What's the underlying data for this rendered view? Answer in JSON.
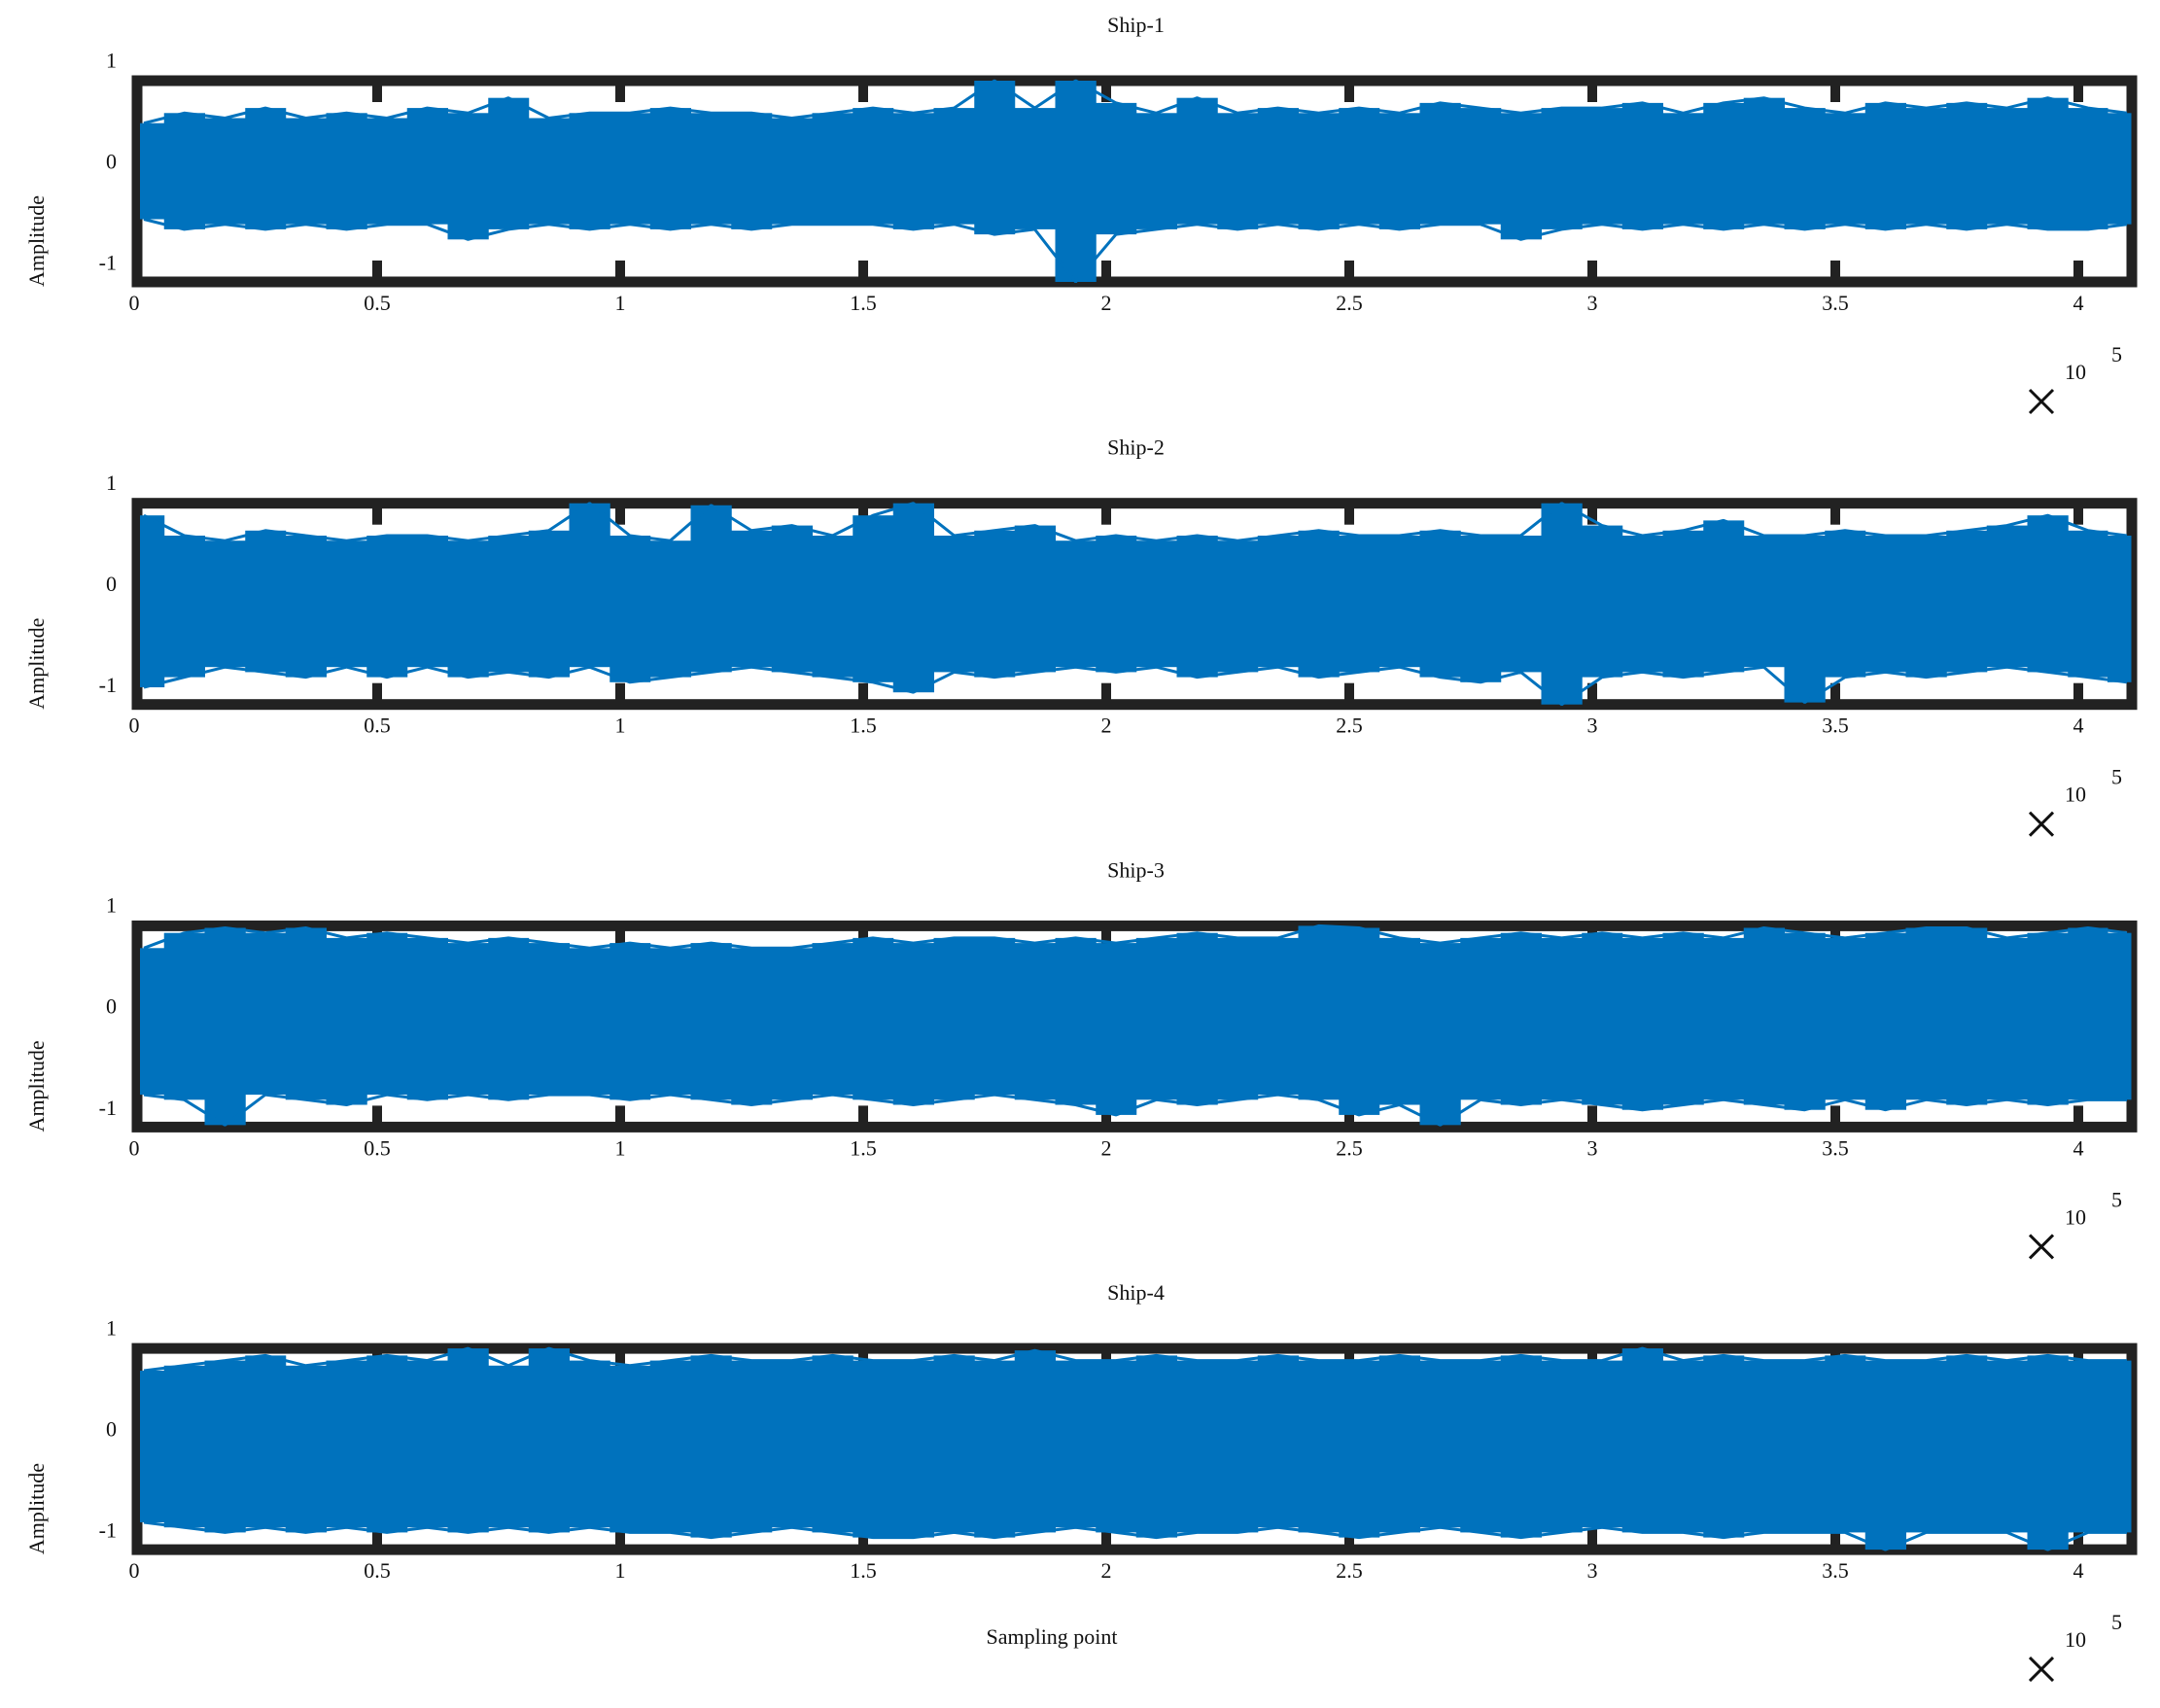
{
  "chart_data": [
    {
      "type": "line",
      "title": "Ship-1",
      "ylabel": "Amplitude",
      "x": [
        0.02,
        0.103,
        0.187,
        0.27,
        0.353,
        0.437,
        0.52,
        0.603,
        0.687,
        0.77,
        0.853,
        0.937,
        1.02,
        1.103,
        1.187,
        1.27,
        1.353,
        1.437,
        1.52,
        1.603,
        1.687,
        1.77,
        1.853,
        1.937,
        2.02,
        2.103,
        2.187,
        2.27,
        2.353,
        2.437,
        2.52,
        2.603,
        2.687,
        2.77,
        2.853,
        2.937,
        3.02,
        3.103,
        3.187,
        3.27,
        3.353,
        3.437,
        3.52,
        3.603,
        3.687,
        3.77,
        3.853,
        3.937,
        4.02,
        4.1
      ],
      "series": [
        {
          "color": "#0072bd",
          "values": [
            0.4,
            0.5,
            0.45,
            0.55,
            0.45,
            0.5,
            0.45,
            0.55,
            0.5,
            0.65,
            0.45,
            0.5,
            0.5,
            0.55,
            0.5,
            0.5,
            0.45,
            0.5,
            0.55,
            0.5,
            0.55,
            0.82,
            0.55,
            0.82,
            0.6,
            0.5,
            0.65,
            0.5,
            0.55,
            0.5,
            0.55,
            0.5,
            0.6,
            0.55,
            0.5,
            0.55,
            0.55,
            0.6,
            0.5,
            0.6,
            0.65,
            0.55,
            0.5,
            0.6,
            0.55,
            0.6,
            0.55,
            0.65,
            0.55,
            0.5
          ]
        },
        {
          "color": "#0072bd",
          "values": [
            -0.55,
            -0.65,
            -0.6,
            -0.65,
            -0.6,
            -0.65,
            -0.6,
            -0.6,
            -0.75,
            -0.65,
            -0.6,
            -0.65,
            -0.6,
            -0.65,
            -0.6,
            -0.65,
            -0.6,
            -0.6,
            -0.6,
            -0.65,
            -0.6,
            -0.7,
            -0.65,
            -1.17,
            -0.7,
            -0.65,
            -0.6,
            -0.65,
            -0.6,
            -0.65,
            -0.6,
            -0.65,
            -0.6,
            -0.6,
            -0.75,
            -0.65,
            -0.6,
            -0.65,
            -0.6,
            -0.65,
            -0.6,
            -0.65,
            -0.6,
            -0.65,
            -0.6,
            -0.65,
            -0.6,
            -0.65,
            -0.65,
            -0.6
          ]
        }
      ],
      "xlim": [
        0,
        4.11
      ],
      "ylim": [
        -1.17,
        0.82
      ],
      "xticks": [
        0,
        0.5,
        1,
        1.5,
        2,
        2.5,
        3,
        3.5,
        4
      ],
      "yticks": [
        -1,
        0,
        1
      ],
      "x_multiplier": {
        "base": "10",
        "exponent": "5"
      }
    },
    {
      "type": "line",
      "title": "Ship-2",
      "ylabel": "Amplitude",
      "x": [
        0.02,
        0.103,
        0.187,
        0.27,
        0.353,
        0.437,
        0.52,
        0.603,
        0.687,
        0.77,
        0.853,
        0.937,
        1.02,
        1.103,
        1.187,
        1.27,
        1.353,
        1.437,
        1.52,
        1.603,
        1.687,
        1.77,
        1.853,
        1.937,
        2.02,
        2.103,
        2.187,
        2.27,
        2.353,
        2.437,
        2.52,
        2.603,
        2.687,
        2.77,
        2.853,
        2.937,
        3.02,
        3.103,
        3.187,
        3.27,
        3.353,
        3.437,
        3.52,
        3.603,
        3.687,
        3.77,
        3.853,
        3.937,
        4.02,
        4.1
      ],
      "series": [
        {
          "color": "#0072bd",
          "values": [
            0.7,
            0.5,
            0.45,
            0.55,
            0.5,
            0.45,
            0.5,
            0.5,
            0.45,
            0.5,
            0.55,
            0.82,
            0.5,
            0.45,
            0.8,
            0.55,
            0.6,
            0.5,
            0.7,
            0.82,
            0.5,
            0.55,
            0.6,
            0.45,
            0.5,
            0.45,
            0.5,
            0.45,
            0.5,
            0.55,
            0.5,
            0.5,
            0.55,
            0.5,
            0.5,
            0.82,
            0.6,
            0.5,
            0.55,
            0.65,
            0.5,
            0.5,
            0.55,
            0.5,
            0.5,
            0.55,
            0.6,
            0.7,
            0.55,
            0.5
          ]
        },
        {
          "color": "#0072bd",
          "values": [
            -1.0,
            -0.9,
            -0.8,
            -0.85,
            -0.9,
            -0.8,
            -0.9,
            -0.8,
            -0.9,
            -0.85,
            -0.9,
            -0.8,
            -0.95,
            -0.9,
            -0.85,
            -0.8,
            -0.85,
            -0.9,
            -0.95,
            -1.05,
            -0.85,
            -0.9,
            -0.85,
            -0.8,
            -0.85,
            -0.8,
            -0.9,
            -0.85,
            -0.8,
            -0.9,
            -0.85,
            -0.8,
            -0.9,
            -0.95,
            -0.85,
            -1.17,
            -0.9,
            -0.85,
            -0.9,
            -0.85,
            -0.8,
            -1.15,
            -0.9,
            -0.85,
            -0.9,
            -0.85,
            -0.8,
            -0.85,
            -0.9,
            -0.95
          ]
        }
      ],
      "xlim": [
        0,
        4.11
      ],
      "ylim": [
        -1.17,
        0.82
      ],
      "xticks": [
        0,
        0.5,
        1,
        1.5,
        2,
        2.5,
        3,
        3.5,
        4
      ],
      "yticks": [
        -1,
        0,
        1
      ],
      "x_multiplier": {
        "base": "10",
        "exponent": "5"
      }
    },
    {
      "type": "line",
      "title": "Ship-3",
      "ylabel": "Amplitude",
      "x": [
        0.02,
        0.103,
        0.187,
        0.27,
        0.353,
        0.437,
        0.52,
        0.603,
        0.687,
        0.77,
        0.853,
        0.937,
        1.02,
        1.103,
        1.187,
        1.27,
        1.353,
        1.437,
        1.52,
        1.603,
        1.687,
        1.77,
        1.853,
        1.937,
        2.02,
        2.103,
        2.187,
        2.27,
        2.353,
        2.437,
        2.52,
        2.603,
        2.687,
        2.77,
        2.853,
        2.937,
        3.02,
        3.103,
        3.187,
        3.27,
        3.353,
        3.437,
        3.52,
        3.603,
        3.687,
        3.77,
        3.853,
        3.937,
        4.02,
        4.1
      ],
      "series": [
        {
          "color": "#0072bd",
          "values": [
            0.6,
            0.75,
            0.8,
            0.75,
            0.8,
            0.7,
            0.75,
            0.7,
            0.65,
            0.7,
            0.65,
            0.6,
            0.65,
            0.6,
            0.65,
            0.6,
            0.6,
            0.65,
            0.7,
            0.65,
            0.7,
            0.7,
            0.65,
            0.7,
            0.65,
            0.7,
            0.75,
            0.7,
            0.7,
            0.82,
            0.8,
            0.7,
            0.65,
            0.7,
            0.75,
            0.7,
            0.75,
            0.7,
            0.75,
            0.7,
            0.8,
            0.75,
            0.7,
            0.75,
            0.8,
            0.8,
            0.7,
            0.75,
            0.8,
            0.75
          ]
        },
        {
          "color": "#0072bd",
          "values": [
            -0.85,
            -0.9,
            -1.15,
            -0.85,
            -0.9,
            -0.95,
            -0.85,
            -0.9,
            -0.85,
            -0.9,
            -0.85,
            -0.85,
            -0.9,
            -0.85,
            -0.9,
            -0.95,
            -0.9,
            -0.85,
            -0.9,
            -0.95,
            -0.9,
            -0.85,
            -0.9,
            -0.95,
            -1.05,
            -0.9,
            -0.95,
            -0.9,
            -0.85,
            -0.9,
            -1.05,
            -0.95,
            -1.15,
            -0.9,
            -0.95,
            -0.9,
            -0.95,
            -1.0,
            -0.95,
            -0.9,
            -0.95,
            -1.0,
            -0.9,
            -1.0,
            -0.9,
            -0.95,
            -0.9,
            -0.95,
            -0.9,
            -0.9
          ]
        }
      ],
      "xlim": [
        0,
        4.11
      ],
      "ylim": [
        -1.17,
        0.82
      ],
      "xticks": [
        0,
        0.5,
        1,
        1.5,
        2,
        2.5,
        3,
        3.5,
        4
      ],
      "yticks": [
        -1,
        0,
        1
      ],
      "x_multiplier": {
        "base": "10",
        "exponent": "5"
      }
    },
    {
      "type": "line",
      "title": "Ship-4",
      "ylabel": "Amplitude",
      "xlabel": "Sampling point",
      "x": [
        0.02,
        0.103,
        0.187,
        0.27,
        0.353,
        0.437,
        0.52,
        0.603,
        0.687,
        0.77,
        0.853,
        0.937,
        1.02,
        1.103,
        1.187,
        1.27,
        1.353,
        1.437,
        1.52,
        1.603,
        1.687,
        1.77,
        1.853,
        1.937,
        2.02,
        2.103,
        2.187,
        2.27,
        2.353,
        2.437,
        2.52,
        2.603,
        2.687,
        2.77,
        2.853,
        2.937,
        3.02,
        3.103,
        3.187,
        3.27,
        3.353,
        3.437,
        3.52,
        3.603,
        3.687,
        3.77,
        3.853,
        3.937,
        4.02,
        4.1
      ],
      "series": [
        {
          "color": "#0072bd",
          "values": [
            0.6,
            0.65,
            0.7,
            0.75,
            0.65,
            0.7,
            0.75,
            0.7,
            0.82,
            0.65,
            0.82,
            0.7,
            0.65,
            0.7,
            0.75,
            0.7,
            0.7,
            0.75,
            0.7,
            0.7,
            0.75,
            0.7,
            0.8,
            0.7,
            0.7,
            0.75,
            0.7,
            0.7,
            0.75,
            0.7,
            0.7,
            0.75,
            0.7,
            0.7,
            0.75,
            0.7,
            0.7,
            0.82,
            0.7,
            0.75,
            0.7,
            0.7,
            0.75,
            0.7,
            0.7,
            0.75,
            0.7,
            0.75,
            0.7,
            0.7
          ]
        },
        {
          "color": "#0072bd",
          "values": [
            -0.9,
            -0.95,
            -1.0,
            -0.95,
            -1.0,
            -0.95,
            -1.0,
            -0.95,
            -1.0,
            -0.95,
            -1.0,
            -0.95,
            -1.0,
            -1.0,
            -1.05,
            -1.0,
            -0.95,
            -1.0,
            -1.05,
            -1.05,
            -1.0,
            -1.05,
            -1.0,
            -0.95,
            -1.0,
            -1.05,
            -1.0,
            -1.0,
            -0.95,
            -1.0,
            -1.05,
            -1.0,
            -0.95,
            -1.0,
            -1.05,
            -1.0,
            -0.95,
            -1.0,
            -1.0,
            -1.05,
            -1.0,
            -1.0,
            -1.0,
            -1.17,
            -1.0,
            -1.0,
            -1.0,
            -1.17,
            -1.0,
            -1.0
          ]
        }
      ],
      "xlim": [
        0,
        4.11
      ],
      "ylim": [
        -1.17,
        0.82
      ],
      "xticks": [
        0,
        0.5,
        1,
        1.5,
        2,
        2.5,
        3,
        3.5,
        4
      ],
      "yticks": [
        -1,
        0,
        1
      ],
      "x_multiplier": {
        "base": "10",
        "exponent": "5"
      }
    }
  ]
}
